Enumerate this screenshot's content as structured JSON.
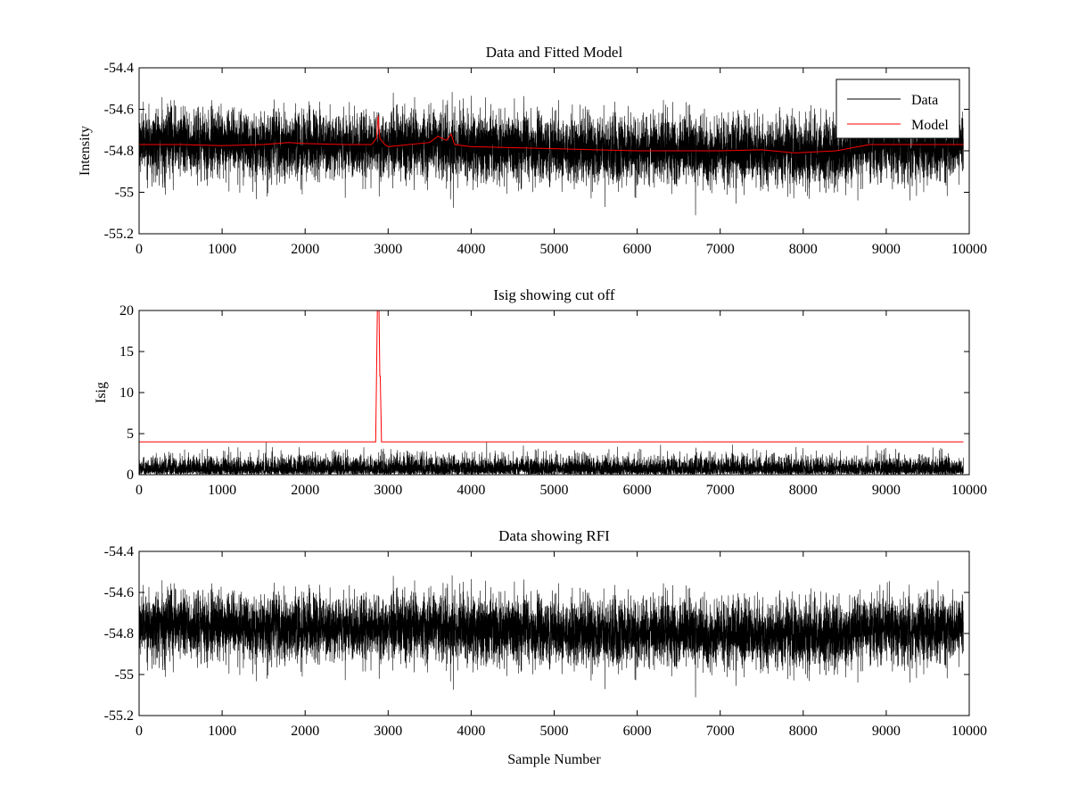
{
  "colors": {
    "background": "#ffffff",
    "data": "#000000",
    "model": "#ff0000",
    "axes": "#000000"
  },
  "chart_data": [
    {
      "type": "line",
      "title": "Data and Fitted Model",
      "xlabel": "",
      "ylabel": "Intensity",
      "xlim": [
        0,
        10000
      ],
      "ylim": [
        -55.2,
        -54.4
      ],
      "xticks": [
        0,
        1000,
        2000,
        3000,
        4000,
        5000,
        6000,
        7000,
        8000,
        9000,
        10000
      ],
      "yticks": [
        -54.4,
        -54.6,
        -54.8,
        -55,
        -55.2
      ],
      "legend": {
        "position": "top-right",
        "entries": [
          "Data",
          "Model"
        ]
      },
      "grid": false,
      "series": [
        {
          "name": "Data",
          "color": "#000000",
          "kind": "noise",
          "n": 9930,
          "baseline_x": [
            0,
            1000,
            2000,
            3000,
            4000,
            5000,
            6000,
            7000,
            8000,
            9000,
            9930
          ],
          "baseline_y": [
            -54.76,
            -54.76,
            -54.77,
            -54.77,
            -54.78,
            -54.79,
            -54.8,
            -54.8,
            -54.81,
            -54.78,
            -54.78
          ],
          "sigma": 0.08,
          "min": -55.12,
          "max": -54.44
        },
        {
          "name": "Model",
          "color": "#ff0000",
          "x": [
            0,
            500,
            1000,
            1500,
            1800,
            2000,
            2500,
            2800,
            2860,
            2880,
            2900,
            2960,
            3000,
            3500,
            3600,
            3700,
            3760,
            3800,
            4000,
            4500,
            5000,
            5500,
            6000,
            6500,
            7000,
            7500,
            7900,
            8400,
            8800,
            9000,
            9930
          ],
          "y": [
            -54.77,
            -54.77,
            -54.775,
            -54.77,
            -54.76,
            -54.765,
            -54.77,
            -54.77,
            -54.74,
            -54.63,
            -54.74,
            -54.77,
            -54.78,
            -54.76,
            -54.73,
            -54.75,
            -54.72,
            -54.77,
            -54.78,
            -54.785,
            -54.79,
            -54.795,
            -54.8,
            -54.8,
            -54.8,
            -54.795,
            -54.81,
            -54.8,
            -54.77,
            -54.77,
            -54.77
          ]
        }
      ]
    },
    {
      "type": "line",
      "title": "Isig showing cut off",
      "xlabel": "",
      "ylabel": "Isig",
      "xlim": [
        0,
        10000
      ],
      "ylim": [
        0,
        20
      ],
      "xticks": [
        0,
        1000,
        2000,
        3000,
        4000,
        5000,
        6000,
        7000,
        8000,
        9000,
        10000
      ],
      "yticks": [
        0,
        5,
        10,
        15,
        20
      ],
      "grid": false,
      "series": [
        {
          "color": "#000000",
          "kind": "abs_noise",
          "n": 9930,
          "sigma": 1.0,
          "max": 4
        },
        {
          "color": "#ff0000",
          "x": [
            0,
            2850,
            2870,
            2880,
            2890,
            2900,
            2905,
            2920,
            9930
          ],
          "y": [
            4,
            4,
            20,
            20,
            20,
            12,
            12,
            4,
            4
          ]
        }
      ]
    },
    {
      "type": "line",
      "title": "Data showing RFI",
      "xlabel": "Sample Number",
      "ylabel": "",
      "xlim": [
        0,
        10000
      ],
      "ylim": [
        -55.2,
        -54.4
      ],
      "xticks": [
        0,
        1000,
        2000,
        3000,
        4000,
        5000,
        6000,
        7000,
        8000,
        9000,
        10000
      ],
      "yticks": [
        -54.4,
        -54.6,
        -54.8,
        -55,
        -55.2
      ],
      "grid": false,
      "series": [
        {
          "color": "#000000",
          "kind": "noise",
          "n": 9930,
          "baseline_x": [
            0,
            1000,
            2000,
            3000,
            4000,
            5000,
            6000,
            7000,
            8000,
            9000,
            9930
          ],
          "baseline_y": [
            -54.76,
            -54.76,
            -54.77,
            -54.77,
            -54.78,
            -54.79,
            -54.8,
            -54.8,
            -54.81,
            -54.78,
            -54.78
          ],
          "sigma": 0.08,
          "min": -55.12,
          "max": -54.44
        }
      ]
    }
  ]
}
